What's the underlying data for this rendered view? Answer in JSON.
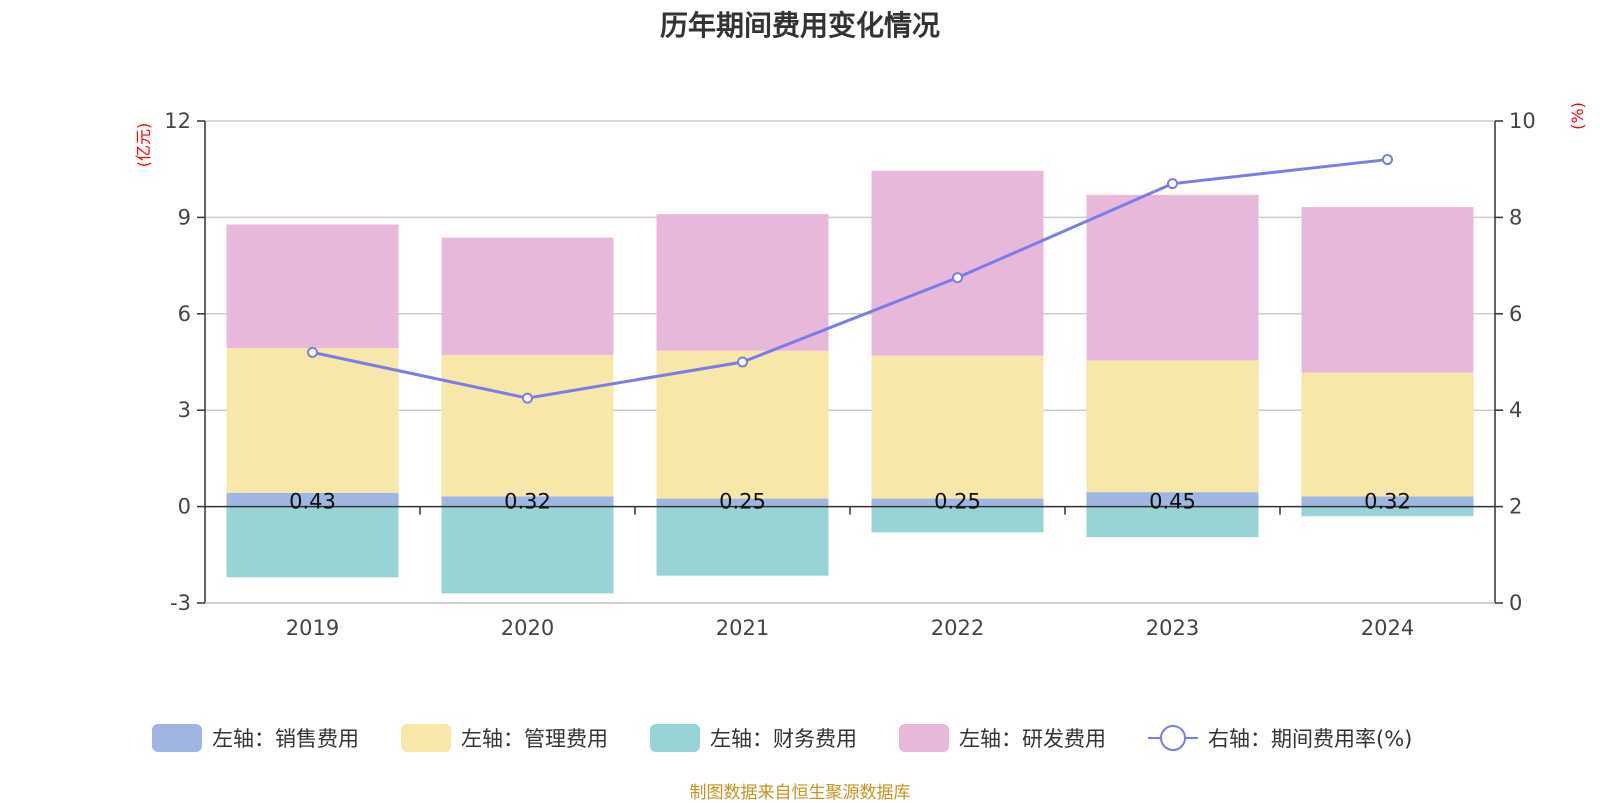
{
  "chart_data": {
    "type": "bar",
    "stacked": true,
    "title": "历年期间费用变化情况",
    "categories": [
      "2019",
      "2020",
      "2021",
      "2022",
      "2023",
      "2024"
    ],
    "left_axis": {
      "unit": "(亿元)",
      "ylim": [
        -3,
        12
      ],
      "ticks": [
        "-3",
        "0",
        "3",
        "6",
        "9",
        "12"
      ],
      "tick_values": [
        -3,
        0,
        3,
        6,
        9,
        12
      ]
    },
    "right_axis": {
      "unit": "(%)",
      "ylim": [
        0,
        10
      ],
      "ticks": [
        "0",
        "2",
        "4",
        "6",
        "8",
        "10"
      ],
      "tick_values": [
        0,
        2,
        4,
        6,
        8,
        10
      ]
    },
    "series": [
      {
        "name": "左轴：销售费用",
        "axis": "left",
        "kind": "bar",
        "color": "#9fb6e2",
        "values": [
          0.43,
          0.32,
          0.25,
          0.25,
          0.45,
          0.32
        ],
        "labels": [
          "0.43",
          "0.32",
          "0.25",
          "0.25",
          "0.45",
          "0.32"
        ]
      },
      {
        "name": "左轴：管理费用",
        "axis": "left",
        "kind": "bar",
        "color": "#f7e7a8",
        "values": [
          4.5,
          4.4,
          4.6,
          4.45,
          4.1,
          3.85
        ]
      },
      {
        "name": "左轴：财务费用",
        "axis": "left",
        "kind": "bar",
        "color": "#98d4d5",
        "values": [
          -2.2,
          -2.7,
          -2.15,
          -0.8,
          -0.95,
          -0.3
        ]
      },
      {
        "name": "左轴：研发费用",
        "axis": "left",
        "kind": "bar",
        "color": "#e7b8d9",
        "values": [
          3.85,
          3.65,
          4.25,
          5.75,
          5.15,
          5.15
        ]
      },
      {
        "name": "右轴：期间费用率(%)",
        "axis": "right",
        "kind": "line",
        "color": "#7a7de8",
        "values": [
          5.2,
          4.25,
          5.0,
          6.75,
          8.7,
          9.2
        ]
      }
    ],
    "grid": true,
    "legend_position": "bottom"
  },
  "source_note": "制图数据来自恒生聚源数据库"
}
